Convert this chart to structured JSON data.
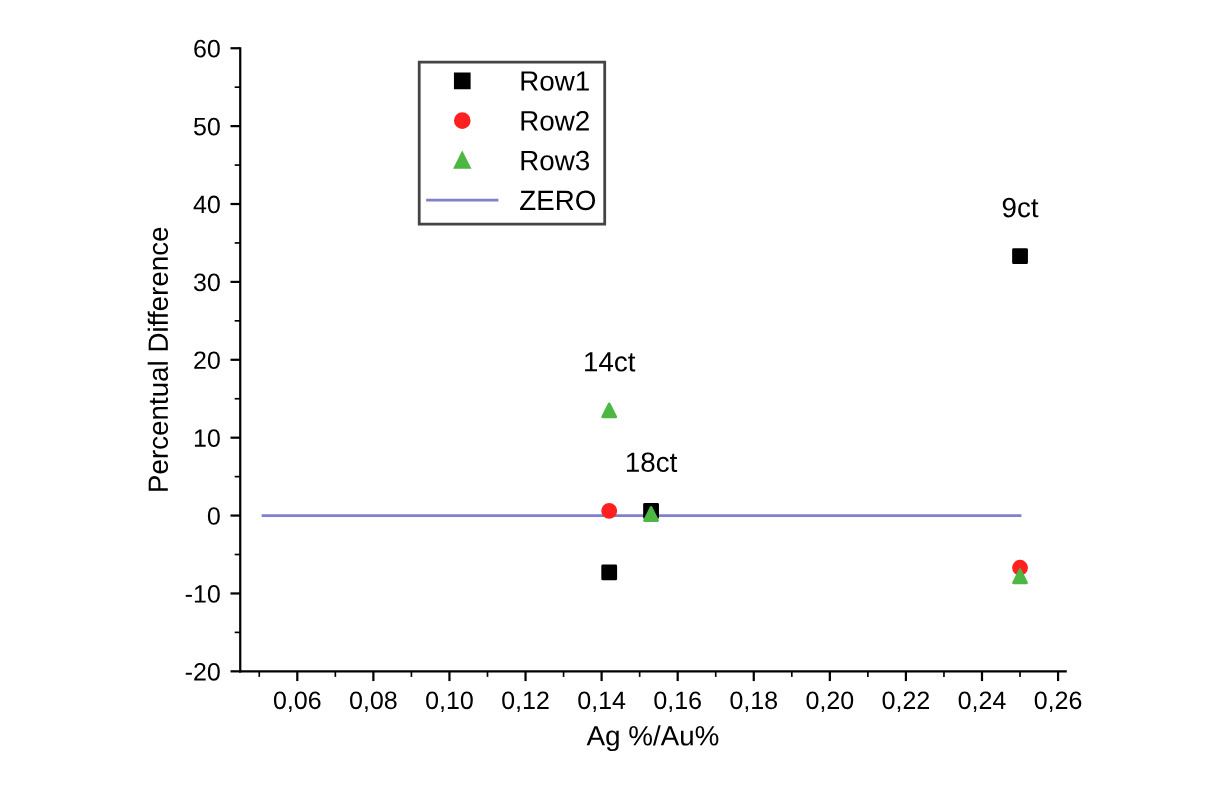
{
  "chart_data": {
    "type": "scatter",
    "xlabel": "Ag %/Au%",
    "ylabel": "Percentual Difference",
    "series": [
      {
        "name": "Row1",
        "color": "#000000",
        "marker": "square",
        "x": [
          0.142,
          0.153,
          0.25
        ],
        "values": [
          -7.3,
          0.6,
          33.3
        ]
      },
      {
        "name": "Row2",
        "color": "#ff2020",
        "marker": "circle",
        "x": [
          0.142,
          0.153,
          0.25
        ],
        "values": [
          0.6,
          null,
          -6.7
        ]
      },
      {
        "name": "Row3",
        "color": "#4cb843",
        "marker": "triangle",
        "x": [
          0.142,
          0.153,
          0.25
        ],
        "values": [
          13.5,
          0.2,
          -7.8
        ]
      },
      {
        "name": "ZERO",
        "type": "line",
        "color": "#8080cc",
        "marker": "none",
        "line_style": "solid",
        "x": [
          0.051,
          0.25
        ],
        "values": [
          0,
          0
        ]
      }
    ],
    "annotations": [
      {
        "text": "14ct",
        "x": 0.142,
        "y": 13.5
      },
      {
        "text": "18ct",
        "x": 0.153,
        "y": 0.6
      },
      {
        "text": "9ct",
        "x": 0.25,
        "y": 33.3
      }
    ],
    "xlim": [
      0.045,
      0.262
    ],
    "xticks": [
      {
        "value": 0.06,
        "label": "0,06"
      },
      {
        "value": 0.08,
        "label": "0,08"
      },
      {
        "value": 0.1,
        "label": "0,10"
      },
      {
        "value": 0.12,
        "label": "0,12"
      },
      {
        "value": 0.14,
        "label": "0,14"
      },
      {
        "value": 0.16,
        "label": "0,16"
      },
      {
        "value": 0.18,
        "label": "0,18"
      },
      {
        "value": 0.2,
        "label": "0,20"
      },
      {
        "value": 0.22,
        "label": "0,22"
      },
      {
        "value": 0.24,
        "label": "0,24"
      },
      {
        "value": 0.26,
        "label": "0,26"
      }
    ],
    "ylim": [
      -20,
      60
    ],
    "yticks": [
      -20,
      -10,
      0,
      10,
      20,
      30,
      40,
      50,
      60
    ],
    "grid": false,
    "legend": "top left"
  }
}
